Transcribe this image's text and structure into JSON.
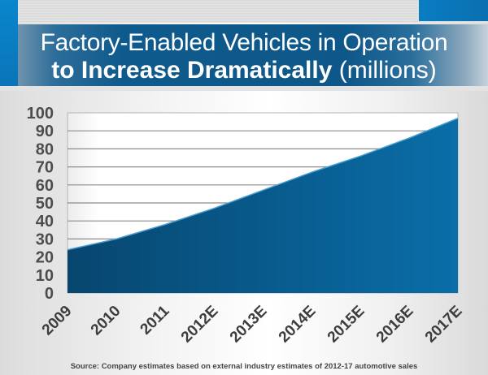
{
  "title": {
    "line1": "Factory-Enabled Vehicles in Operation",
    "line2_bold": "to Increase Dramatically",
    "line2_light": "(millions)"
  },
  "source_note": "Source: Company estimates based on external industry estimates of 2012-17 automotive sales",
  "colors": {
    "area_fill_dark": "#07466f",
    "area_fill_light": "#0a6ea8",
    "area_edge": "#4a9fd0",
    "gridline": "#8c8c8c",
    "banner_blue": "#0e5789",
    "accent_blue": "#0a7dc3"
  },
  "chart_data": {
    "type": "area",
    "title": "Factory-Enabled Vehicles in Operation to Increase Dramatically (millions)",
    "xlabel": "",
    "ylabel": "",
    "categories": [
      "2009",
      "2010",
      "2011",
      "2012E",
      "2013E",
      "2014E",
      "2015E",
      "2016E",
      "2017E"
    ],
    "series": [
      {
        "name": "Factory-Enabled Vehicles in Operation (millions)",
        "values": [
          24,
          30,
          38,
          47,
          57,
          67,
          76,
          86,
          97
        ]
      }
    ],
    "ylim": [
      0,
      100
    ],
    "yticks": [
      0,
      10,
      20,
      30,
      40,
      50,
      60,
      70,
      80,
      90,
      100
    ],
    "grid": true,
    "legend": "none"
  }
}
